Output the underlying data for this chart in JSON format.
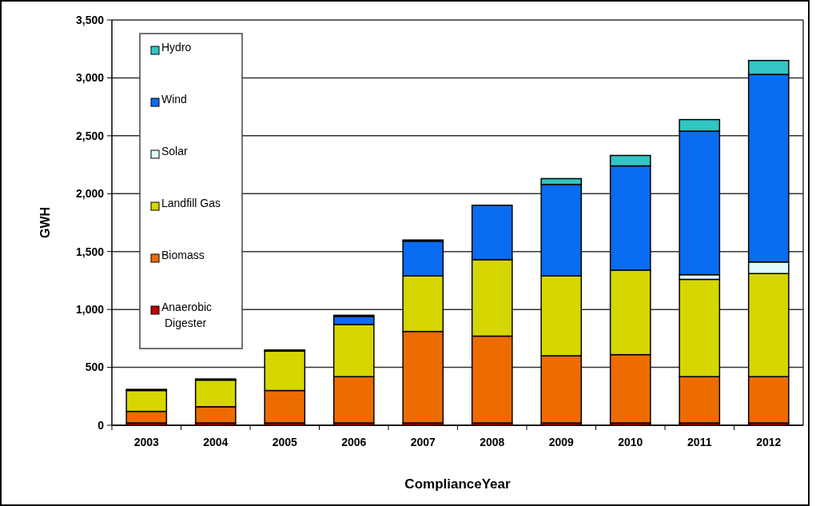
{
  "chart_data": {
    "type": "bar",
    "stacked": true,
    "xlabel": "ComplianceYear",
    "ylabel": "GWH",
    "categories": [
      "2003",
      "2004",
      "2005",
      "2006",
      "2007",
      "2008",
      "2009",
      "2010",
      "2011",
      "2012"
    ],
    "series": [
      {
        "name": "Anaerobic Digester",
        "color": "#c00000",
        "values": [
          20,
          20,
          20,
          20,
          20,
          20,
          20,
          20,
          20,
          20
        ]
      },
      {
        "name": "Biomass",
        "color": "#ed6c00",
        "values": [
          100,
          140,
          280,
          400,
          790,
          750,
          580,
          590,
          400,
          400
        ]
      },
      {
        "name": "Landfill Gas",
        "color": "#d6d600",
        "values": [
          180,
          230,
          340,
          450,
          480,
          660,
          690,
          730,
          840,
          890
        ]
      },
      {
        "name": "Solar",
        "color": "#dffbfb",
        "values": [
          0,
          0,
          0,
          0,
          0,
          0,
          0,
          0,
          40,
          100
        ]
      },
      {
        "name": "Wind",
        "color": "#0a6cf0",
        "values": [
          0,
          0,
          0,
          70,
          300,
          470,
          790,
          900,
          1240,
          1620
        ]
      },
      {
        "name": "Hydro",
        "color": "#33c4c4",
        "values": [
          10,
          10,
          10,
          10,
          10,
          0,
          50,
          90,
          100,
          120
        ]
      }
    ],
    "ylim": [
      0,
      3500
    ],
    "yticks": [
      0,
      500,
      {
        "value": 1000,
        "label": "1,000"
      },
      {
        "value": 1500,
        "label": "1,500"
      },
      {
        "value": 2000,
        "label": "2,000"
      },
      {
        "value": 2500,
        "label": "2,500"
      },
      {
        "value": 3000,
        "label": "3,000"
      },
      {
        "value": 3500,
        "label": "3,500"
      }
    ],
    "grid": "y",
    "legend": "top left"
  }
}
